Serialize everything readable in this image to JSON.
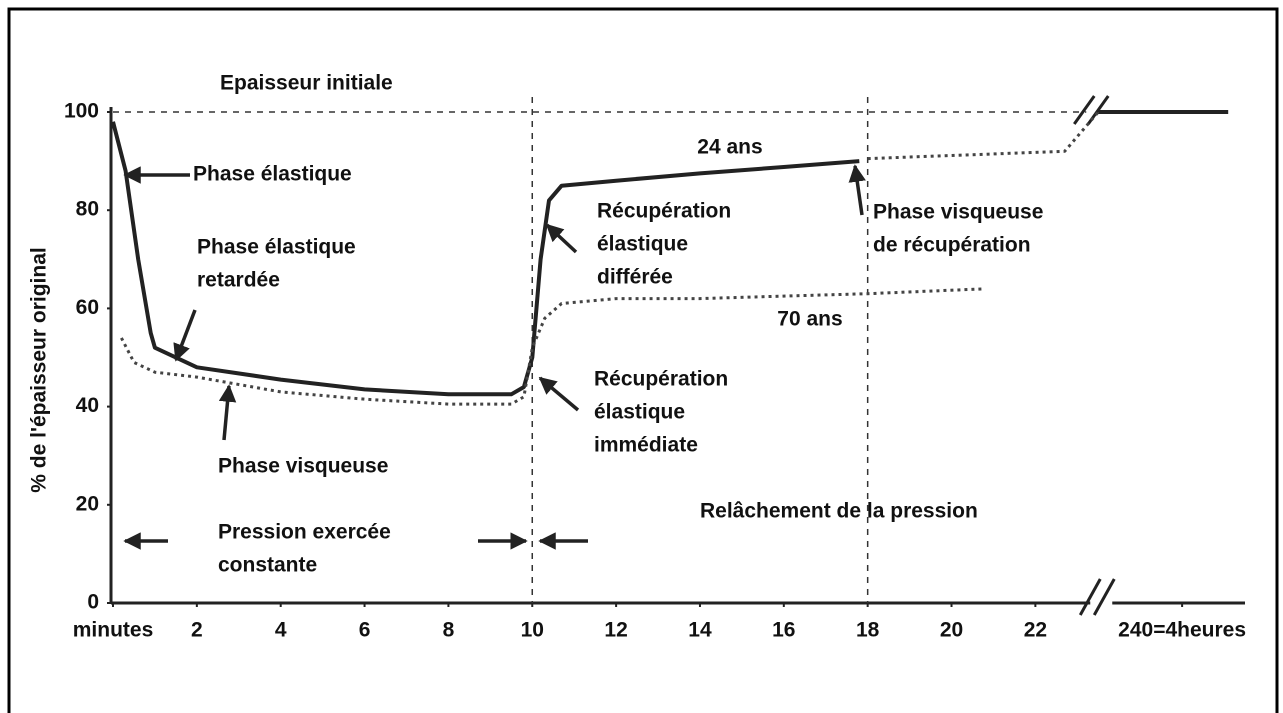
{
  "chart_data": {
    "type": "line",
    "y_label": "% de l'épaisseur original",
    "xlim": [
      0,
      241.5
    ],
    "x_break": [
      23.5,
      238
    ],
    "xticks": [
      {
        "value": 0,
        "label": "minutes"
      },
      2,
      4,
      6,
      8,
      10,
      12,
      14,
      16,
      18,
      20,
      22,
      {
        "value": 240,
        "label": "240=4heures"
      }
    ],
    "ylim": [
      0,
      100
    ],
    "yticks": [
      0,
      20,
      40,
      60,
      80,
      100
    ],
    "reference_lines": {
      "y": [
        100
      ],
      "x": [
        10,
        18
      ]
    },
    "series": [
      {
        "name": "24 ans",
        "color": "#222222",
        "style": "solid",
        "x": [
          0,
          0.3,
          0.6,
          0.9,
          1,
          2,
          4,
          6,
          8,
          9.5,
          9.8,
          10,
          10.2,
          10.4,
          10.7,
          12,
          14,
          16,
          17.8
        ],
        "values": [
          98,
          88,
          70,
          55,
          52,
          48,
          45.5,
          43.5,
          42.5,
          42.5,
          44,
          50,
          70,
          82,
          85,
          86,
          87.5,
          88.8,
          90
        ]
      },
      {
        "name": "70 ans",
        "color": "#444444",
        "style": "dotted",
        "x": [
          0.2,
          0.5,
          1,
          2,
          4,
          6,
          8,
          9.5,
          9.8,
          10,
          10.3,
          10.7,
          12,
          14,
          16,
          18,
          20.8
        ],
        "values": [
          54,
          49,
          47,
          46,
          43,
          41.5,
          40.5,
          40.5,
          42,
          52,
          58,
          61,
          62,
          62,
          62.5,
          63,
          64
        ]
      },
      {
        "color": "#444444",
        "style": "dotted",
        "x": [
          18,
          22.7,
          23.5
        ],
        "values": [
          90.5,
          92,
          100
        ]
      },
      {
        "color": "#222222",
        "style": "solid",
        "x": [
          238,
          241.1
        ],
        "values": [
          100,
          100
        ]
      }
    ],
    "annotations": [
      [
        "Epaisseur initiale"
      ],
      [
        "Phase élastique"
      ],
      [
        "Phase élastique",
        "retardée"
      ],
      [
        "Phase visqueuse"
      ],
      [
        "Pression exercée",
        "constante"
      ],
      [
        "Récupération",
        "élastique",
        "différée"
      ],
      [
        "Récupération",
        "élastique",
        "immédiate"
      ],
      [
        "Phase visqueuse",
        "de récupération"
      ],
      [
        "Relâchement de la pression"
      ]
    ]
  }
}
